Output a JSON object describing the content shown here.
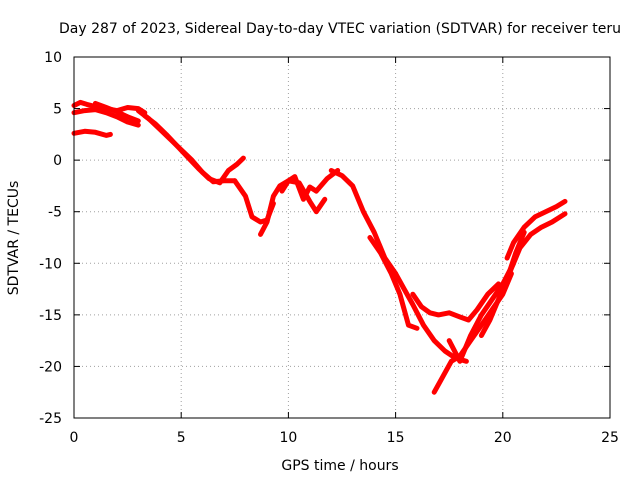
{
  "chart_data": {
    "type": "line",
    "title": "Day 287 of 2023, Sidereal Day-to-day VTEC variation (SDTVAR) for receiver teru",
    "xlabel": "GPS time / hours",
    "ylabel": "SDTVAR / TECUs",
    "xlim": [
      0,
      25
    ],
    "ylim": [
      -25,
      10
    ],
    "xticks": [
      0,
      5,
      10,
      15,
      20,
      25
    ],
    "yticks": [
      -25,
      -20,
      -15,
      -10,
      -5,
      0,
      5,
      10
    ],
    "grid": true,
    "legend": "none",
    "series_color": "#ff0000",
    "series": [
      {
        "x": [
          0.0,
          0.3,
          0.6,
          1.0,
          1.5,
          2.0,
          2.5,
          3.0,
          3.3
        ],
        "y": [
          5.3,
          5.6,
          5.4,
          5.2,
          5.0,
          4.8,
          5.1,
          5.0,
          4.6
        ]
      },
      {
        "x": [
          0.0,
          0.5,
          1.0,
          1.5,
          2.0,
          2.5,
          3.0
        ],
        "y": [
          4.6,
          4.8,
          4.9,
          4.6,
          4.2,
          3.7,
          3.4
        ]
      },
      {
        "x": [
          1.0,
          1.5,
          2.0,
          2.5,
          3.0
        ],
        "y": [
          5.5,
          5.1,
          4.7,
          4.2,
          3.8
        ]
      },
      {
        "x": [
          0.0,
          0.5,
          1.0,
          1.5,
          1.7
        ],
        "y": [
          2.6,
          2.8,
          2.7,
          2.4,
          2.5
        ]
      },
      {
        "x": [
          3.0,
          3.5,
          4.0,
          4.5,
          5.0,
          5.5,
          6.0,
          6.5,
          7.0,
          7.5
        ],
        "y": [
          4.8,
          4.0,
          3.0,
          2.0,
          1.0,
          0.0,
          -1.2,
          -2.1,
          -2.0,
          -2.0
        ]
      },
      {
        "x": [
          3.3,
          3.8,
          4.3,
          4.8,
          5.3,
          5.8,
          6.3,
          6.8,
          7.2,
          7.6,
          7.9
        ],
        "y": [
          4.3,
          3.5,
          2.5,
          1.4,
          0.3,
          -0.8,
          -1.8,
          -2.2,
          -1.0,
          -0.4,
          0.2
        ]
      },
      {
        "x": [
          7.5,
          8.0,
          8.3,
          8.7,
          9.0,
          9.3
        ],
        "y": [
          -2.0,
          -3.5,
          -5.5,
          -6.0,
          -5.8,
          -4.2
        ]
      },
      {
        "x": [
          8.7,
          9.0,
          9.3,
          9.6,
          10.0,
          10.3,
          10.7,
          11.0,
          11.3,
          11.8,
          12.3
        ],
        "y": [
          -7.2,
          -6.0,
          -3.5,
          -2.5,
          -2.0,
          -1.6,
          -3.8,
          -2.6,
          -3.0,
          -1.8,
          -1.0
        ]
      },
      {
        "x": [
          9.7,
          10.0,
          10.5,
          11.0,
          11.3,
          11.7
        ],
        "y": [
          -3.0,
          -2.0,
          -2.2,
          -4.0,
          -5.0,
          -3.8
        ]
      },
      {
        "x": [
          12.0,
          12.5,
          13.0,
          13.5,
          14.0,
          14.5,
          15.0
        ],
        "y": [
          -1.0,
          -1.5,
          -2.5,
          -5.0,
          -7.0,
          -9.5,
          -11.0
        ]
      },
      {
        "x": [
          13.8,
          14.3,
          14.8,
          15.2,
          15.6,
          16.0
        ],
        "y": [
          -7.5,
          -9.0,
          -11.0,
          -13.0,
          -16.0,
          -16.3
        ]
      },
      {
        "x": [
          15.0,
          15.4,
          15.8,
          16.3,
          16.8,
          17.3,
          17.8,
          18.3
        ],
        "y": [
          -11.0,
          -12.5,
          -14.0,
          -16.0,
          -17.5,
          -18.5,
          -19.2,
          -19.5
        ]
      },
      {
        "x": [
          15.8,
          16.2,
          16.6,
          17.0,
          17.5,
          18.0,
          18.4,
          18.8,
          19.3,
          19.8
        ],
        "y": [
          -13.0,
          -14.2,
          -14.8,
          -15.0,
          -14.8,
          -15.2,
          -15.5,
          -14.5,
          -13.0,
          -12.0
        ]
      },
      {
        "x": [
          16.8,
          17.2,
          17.6,
          18.0,
          18.5,
          19.0,
          19.5,
          20.0,
          20.4
        ],
        "y": [
          -22.5,
          -21.0,
          -19.5,
          -19.0,
          -17.5,
          -16.0,
          -14.5,
          -13.0,
          -11.0
        ]
      },
      {
        "x": [
          17.5,
          18.0,
          18.5,
          19.0,
          19.5,
          20.0,
          20.5
        ],
        "y": [
          -17.5,
          -19.5,
          -17.0,
          -15.0,
          -13.5,
          -12.0,
          -10.0
        ]
      },
      {
        "x": [
          19.0,
          19.4,
          19.8,
          20.2,
          20.6,
          21.0
        ],
        "y": [
          -17.0,
          -15.5,
          -13.5,
          -11.5,
          -9.0,
          -7.0
        ]
      },
      {
        "x": [
          20.2,
          20.5,
          21.0,
          21.5,
          22.0,
          22.5,
          22.9
        ],
        "y": [
          -9.5,
          -8.0,
          -6.5,
          -5.5,
          -5.0,
          -4.5,
          -4.0
        ]
      },
      {
        "x": [
          20.3,
          20.8,
          21.3,
          21.8,
          22.3,
          22.9
        ],
        "y": [
          -11.0,
          -8.5,
          -7.2,
          -6.5,
          -6.0,
          -5.2
        ]
      }
    ]
  }
}
